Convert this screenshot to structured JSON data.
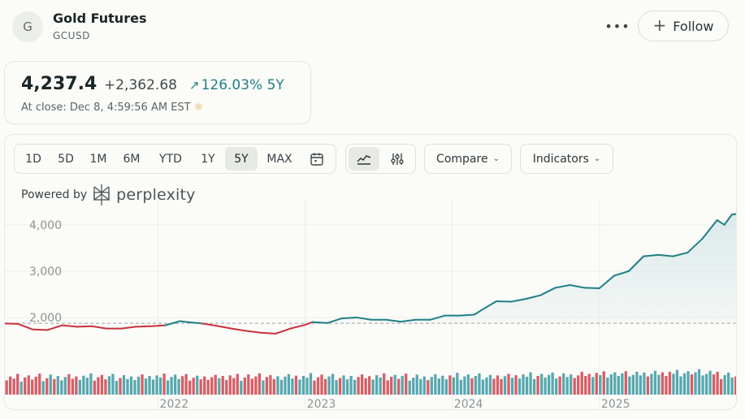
{
  "header": {
    "avatar_letter": "G",
    "title": "Gold Futures",
    "ticker": "GCUSD",
    "more_label": "•••",
    "follow_label": "Follow"
  },
  "quote": {
    "price": "4,237.4",
    "change": "+2,362.68",
    "change_pct": "126.03% 5Y",
    "close_text": "At close: Dec 8, 4:59:56 AM EST",
    "sun_icon": "☼"
  },
  "toolbar": {
    "ranges": [
      "1D",
      "5D",
      "1M",
      "6M",
      "YTD",
      "1Y",
      "5Y",
      "MAX"
    ],
    "active_range": "5Y",
    "compare_label": "Compare",
    "indicators_label": "Indicators"
  },
  "powered": {
    "label": "Powered by",
    "brand": "perplexity"
  },
  "colors": {
    "up": "#1f7f86",
    "down": "#c8323f",
    "area": "#dbe9eb",
    "grid": "#ecede8"
  },
  "chart_data": {
    "type": "line",
    "y_ticks": [
      2000,
      3000,
      4000
    ],
    "y_tick_labels": [
      "2,000",
      "3,000",
      "4,000"
    ],
    "x_tick_labels": [
      "2022",
      "2023",
      "2024",
      "2025"
    ],
    "x_tick_dates": [
      2022.0,
      2023.0,
      2024.0,
      2025.0
    ],
    "baseline": 1874.7,
    "ylim": [
      1000,
      4400
    ],
    "xlim": [
      2020.96,
      2025.94
    ],
    "legend": "none",
    "series": [
      {
        "x": [
          2020.96,
          2021.05,
          2021.15,
          2021.25,
          2021.35,
          2021.45,
          2021.55,
          2021.65,
          2021.75,
          2021.85,
          2021.95,
          2022.05,
          2022.15,
          2022.2,
          2022.3,
          2022.4,
          2022.5,
          2022.6,
          2022.7,
          2022.8,
          2022.9,
          2023.0,
          2023.05,
          2023.15,
          2023.25,
          2023.35,
          2023.45,
          2023.55,
          2023.65,
          2023.75,
          2023.85,
          2023.95,
          2024.05,
          2024.15,
          2024.2,
          2024.3,
          2024.4,
          2024.5,
          2024.6,
          2024.7,
          2024.8,
          2024.9,
          2025.0,
          2025.1,
          2025.2,
          2025.3,
          2025.4,
          2025.5,
          2025.6,
          2025.7,
          2025.75,
          2025.8,
          2025.85,
          2025.9,
          2025.94
        ],
        "y": [
          1870,
          1860,
          1740,
          1730,
          1830,
          1800,
          1810,
          1760,
          1760,
          1800,
          1810,
          1830,
          1920,
          1900,
          1870,
          1820,
          1760,
          1710,
          1670,
          1650,
          1760,
          1840,
          1900,
          1880,
          1980,
          2000,
          1950,
          1950,
          1910,
          1950,
          1950,
          2040,
          2040,
          2060,
          2160,
          2350,
          2340,
          2400,
          2480,
          2640,
          2700,
          2640,
          2630,
          2900,
          3000,
          3320,
          3350,
          3320,
          3400,
          3700,
          3900,
          4100,
          4000,
          4220,
          4237
        ]
      }
    ],
    "volume": [
      0.55,
      0.7,
      0.62,
      0.8,
      0.5,
      0.66,
      0.74,
      0.58,
      0.69,
      0.81,
      0.52,
      0.63,
      0.77,
      0.6,
      0.72,
      0.55,
      0.68,
      0.79,
      0.61,
      0.7,
      0.57,
      0.73,
      0.65,
      0.82,
      0.54,
      0.67,
      0.76,
      0.59,
      0.71,
      0.8,
      0.53,
      0.64,
      0.75,
      0.6,
      0.7,
      0.56,
      0.69,
      0.78,
      0.62,
      0.72,
      0.58,
      0.74,
      0.66,
      0.81,
      0.55,
      0.68,
      0.77,
      0.6,
      0.71,
      0.79,
      0.54,
      0.65,
      0.73,
      0.59,
      0.7,
      0.57,
      0.67,
      0.76,
      0.63,
      0.72,
      0.56,
      0.74,
      0.64,
      0.8,
      0.53,
      0.66,
      0.78,
      0.61,
      0.7,
      0.82,
      0.55,
      0.68,
      0.75,
      0.6,
      0.71,
      0.57,
      0.69,
      0.79,
      0.62,
      0.73,
      0.58,
      0.72,
      0.65,
      0.83,
      0.54,
      0.67,
      0.77,
      0.6,
      0.7,
      0.8,
      0.56,
      0.64,
      0.74,
      0.59,
      0.72,
      0.57,
      0.68,
      0.78,
      0.63,
      0.71,
      0.58,
      0.75,
      0.66,
      0.82,
      0.55,
      0.69,
      0.76,
      0.61,
      0.72,
      0.81,
      0.54,
      0.65,
      0.77,
      0.6,
      0.7,
      0.56,
      0.68,
      0.79,
      0.62,
      0.73,
      0.59,
      0.74,
      0.67,
      0.84,
      0.57,
      0.7,
      0.78,
      0.63,
      0.72,
      0.82,
      0.58,
      0.66,
      0.76,
      0.61,
      0.74,
      0.6,
      0.71,
      0.8,
      0.65,
      0.75,
      0.62,
      0.78,
      0.69,
      0.86,
      0.6,
      0.72,
      0.8,
      0.66,
      0.76,
      0.85,
      0.62,
      0.7,
      0.82,
      0.68,
      0.78,
      0.64,
      0.74,
      0.88,
      0.72,
      0.8,
      0.68,
      0.84,
      0.75,
      0.9,
      0.66,
      0.78,
      0.86,
      0.72,
      0.82,
      0.9,
      0.7,
      0.76,
      0.88,
      0.74,
      0.85,
      0.7,
      0.8,
      0.92,
      0.76,
      0.86,
      0.72,
      0.88,
      0.8,
      0.95,
      0.7,
      0.82,
      0.9,
      0.78,
      0.86,
      0.98,
      0.74,
      0.8,
      0.92,
      0.78,
      0.88,
      0.6,
      0.75,
      0.85,
      0.66,
      0.7
    ]
  }
}
